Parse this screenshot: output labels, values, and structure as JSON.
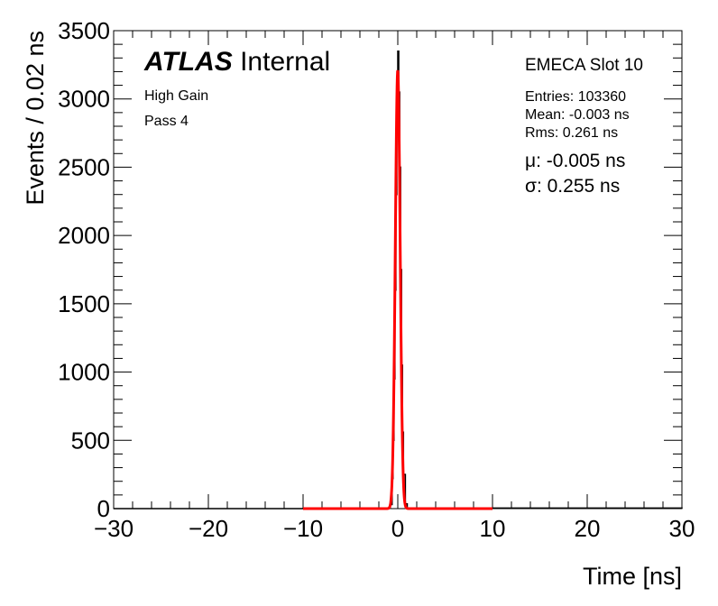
{
  "chart_data": {
    "type": "histogram",
    "xlabel": "Time [ns]",
    "ylabel": "Events / 0.02 ns",
    "xlim": [
      -30,
      30
    ],
    "ylim": [
      0,
      3500
    ],
    "xticks": [
      -30,
      -20,
      -10,
      0,
      10,
      20,
      30
    ],
    "xtick_labels": [
      "−30",
      "−20",
      "−10",
      "0",
      "10",
      "20",
      "30"
    ],
    "yticks": [
      0,
      500,
      1000,
      1500,
      2000,
      2500,
      3000,
      3500
    ],
    "ytick_labels": [
      "0",
      "500",
      "1000",
      "1500",
      "2000",
      "2500",
      "3000",
      "3500"
    ],
    "grid": false,
    "series": [
      {
        "style": "histogram",
        "color": "#000000",
        "x": [
          -30,
          -1.0,
          -0.8,
          -0.6,
          -0.5,
          -0.4,
          -0.3,
          -0.2,
          -0.1,
          0.0,
          0.1,
          0.2,
          0.3,
          0.4,
          0.5,
          0.6,
          0.8,
          1.0,
          30
        ],
        "y": [
          0,
          5,
          30,
          220,
          500,
          950,
          1600,
          2300,
          2900,
          3350,
          3050,
          2500,
          1750,
          1050,
          560,
          250,
          35,
          4,
          0
        ]
      },
      {
        "style": "gaussian-fit",
        "color": "#ff0000",
        "fit_range": [
          -10,
          10
        ],
        "amplitude": 3210,
        "mu": -0.005,
        "sigma": 0.255
      }
    ]
  },
  "labels": {
    "atlas_word": "ATLAS",
    "atlas_suffix": " Internal",
    "gain": "High Gain",
    "pass": "Pass 4",
    "slot": "EMECA Slot 10",
    "entries": "Entries: 103360",
    "mean": "Mean: -0.003 ns",
    "rms": "Rms: 0.261 ns",
    "mu": "μ: -0.005 ns",
    "sigma": "σ: 0.255 ns"
  }
}
